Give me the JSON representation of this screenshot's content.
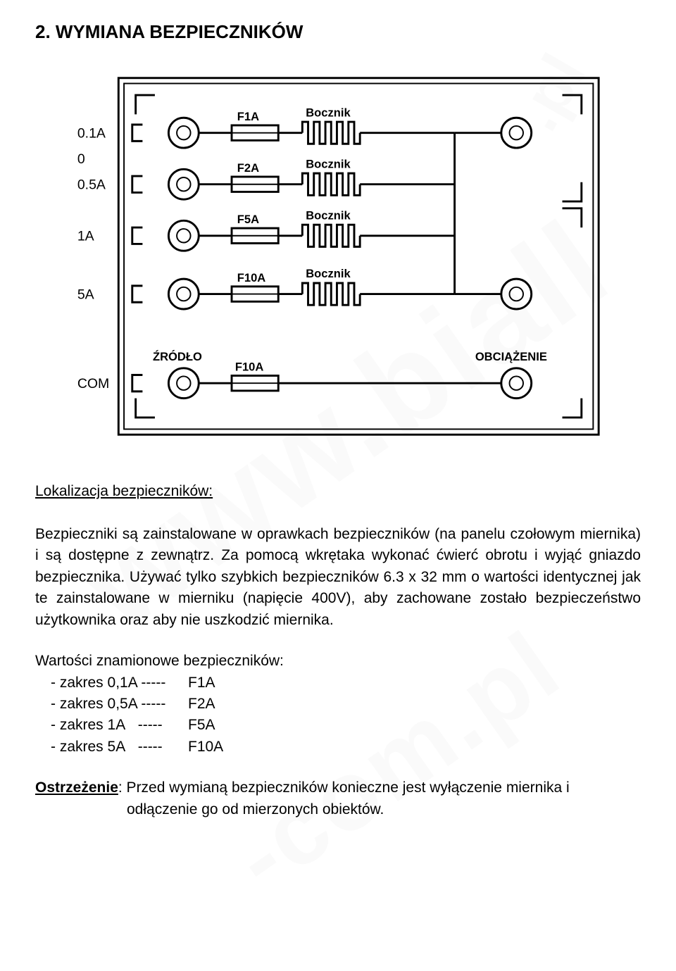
{
  "header": {
    "section_title": "2. WYMIANA BEZPIECZNIKÓW"
  },
  "diagram": {
    "outer_border_color": "#000000",
    "bg_color": "#ffffff",
    "left_labels": [
      "0.1A",
      "0.5A",
      "1A",
      "5A",
      "COM"
    ],
    "zero_label": "0",
    "source_label": "ŹRÓDŁO",
    "load_label": "OBCIĄŻENIE",
    "rows": [
      {
        "fuse": "F1A",
        "bocznik": "Bocznik"
      },
      {
        "fuse": "F2A",
        "bocznik": "Bocznik"
      },
      {
        "fuse": "F5A",
        "bocznik": "Bocznik"
      },
      {
        "fuse": "F10A",
        "bocznik": "Bocznik"
      }
    ],
    "com_fuse": "F10A",
    "stroke_width_thick": 3,
    "stroke_width_thin": 2,
    "node_radius_outer": 22,
    "node_radius_inner": 10,
    "font_label_bold": 17,
    "font_left_scale": 20
  },
  "loc_heading": "Lokalizacja bezpieczników:",
  "paragraph": "Bezpieczniki są zainstalowane w oprawkach bezpieczników (na panelu czołowym miernika) i są dostępne z zewnątrz. Za pomocą wkrętaka wykonać ćwierć obrotu i wyjąć gniazdo bezpiecznika. Używać tylko szybkich bezpieczników 6.3 x 32 mm o wartości identycznej jak te zainstalowane w mierniku (napięcie 400V), aby zachowane zostało bezpieczeństwo użytkownika oraz aby nie uszkodzić miernika.",
  "ratings_heading": "Wartości znamionowe bezpieczników:",
  "ratings": [
    {
      "range": "- zakres 0,1A -----",
      "fuse": "F1A"
    },
    {
      "range": "- zakres 0,5A -----",
      "fuse": "F2A"
    },
    {
      "range": "- zakres 1A   -----",
      "fuse": "F5A"
    },
    {
      "range": "- zakres 5A   -----",
      "fuse": "F10A"
    }
  ],
  "warning_label": "Ostrzeżenie",
  "warning_text_first": ": Przed wymianą bezpieczników konieczne jest wyłączenie miernika i",
  "warning_text_cont": "odłączenie go od mierzonych obiektów.",
  "watermarks": {
    "text1": "www.biall",
    "text2": "-com.pl",
    "text3": ".pl"
  }
}
